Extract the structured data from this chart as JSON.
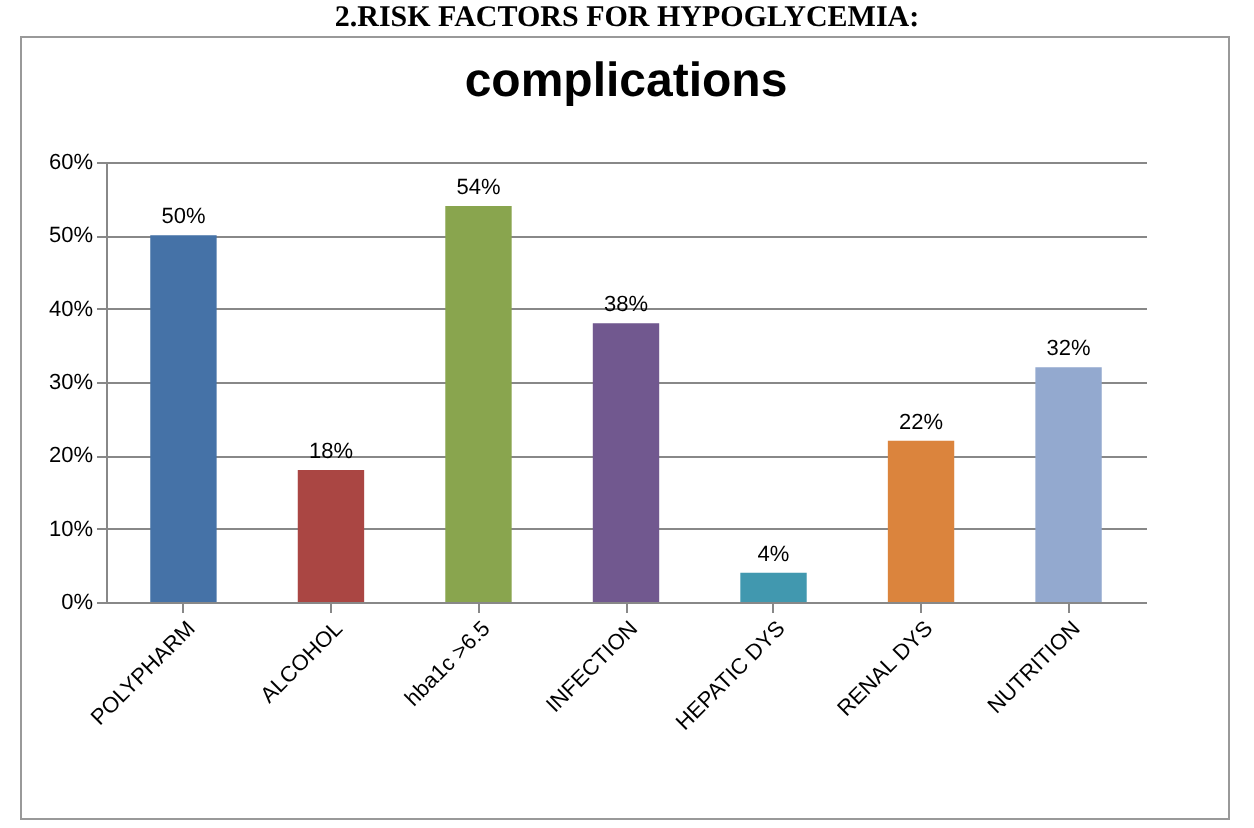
{
  "chart_data": {
    "type": "bar",
    "title": "complications",
    "annotations": [
      "2.RISK FACTORS FOR HYPOGLYCEMIA:"
    ],
    "categories": [
      "POLYPHARM",
      "ALCOHOL",
      "hba1c >6.5",
      "INFECTION",
      "HEPATIC DYS",
      "RENAL DYS",
      "NUTRITION"
    ],
    "values": [
      50,
      18,
      54,
      38,
      4,
      22,
      32
    ],
    "colors": [
      "#4572a7",
      "#aa4643",
      "#89a54e",
      "#71588f",
      "#4198af",
      "#db843d",
      "#93a9cf"
    ],
    "value_labels": [
      "50%",
      "18%",
      "54%",
      "38%",
      "4%",
      "22%",
      "32%"
    ],
    "ylim": [
      0,
      60
    ],
    "yticks": [
      {
        "value": 0,
        "label": "0%"
      },
      {
        "value": 10,
        "label": "10%"
      },
      {
        "value": 20,
        "label": "20%"
      },
      {
        "value": 30,
        "label": "30%"
      },
      {
        "value": 40,
        "label": "40%"
      },
      {
        "value": 50,
        "label": "50%"
      },
      {
        "value": 60,
        "label": "60%"
      }
    ],
    "grid": "y",
    "legend": false
  }
}
